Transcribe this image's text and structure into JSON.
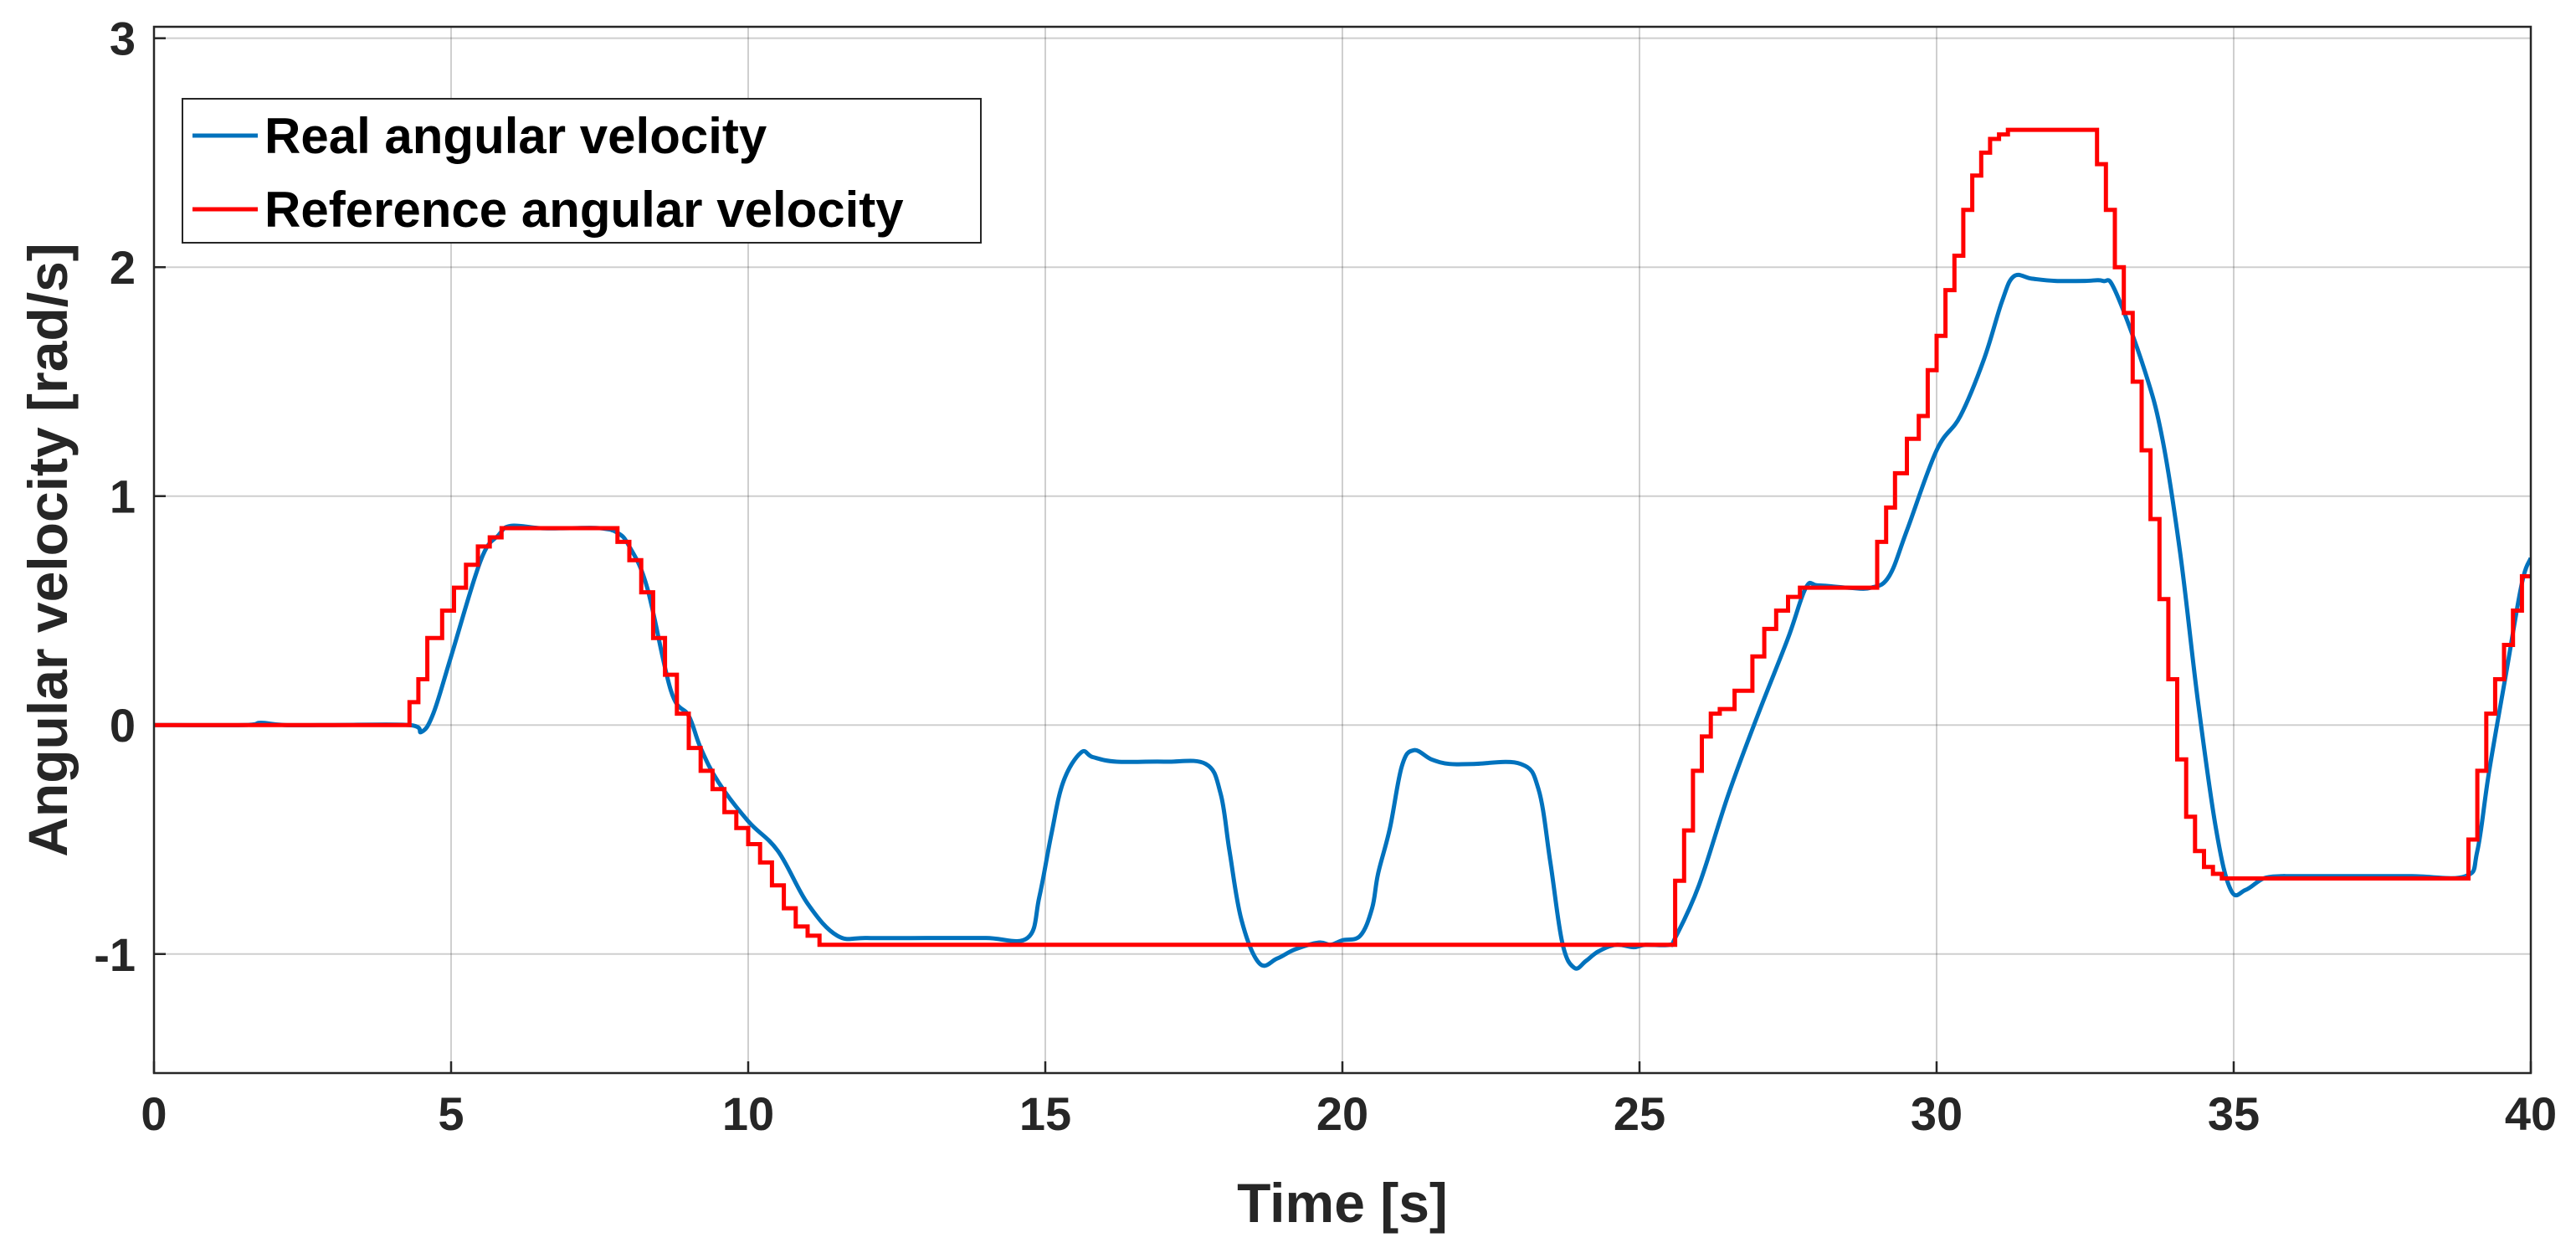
{
  "chart_data": {
    "type": "line",
    "title": "",
    "xlabel": "Time [s]",
    "ylabel": "Angular velocity [rad/s]",
    "xlim": [
      0,
      40
    ],
    "ylim": [
      -1.52,
      3.05
    ],
    "xticks": [
      0,
      5,
      10,
      15,
      20,
      25,
      30,
      35,
      40
    ],
    "yticks": [
      -1,
      0,
      1,
      2,
      3
    ],
    "grid": true,
    "legend_position": "top-left",
    "series": [
      {
        "name": "Real angular velocity",
        "color": "#0072BD",
        "x": [
          0,
          1.5,
          1.8,
          2.2,
          3.0,
          4.3,
          4.5,
          4.7,
          5.0,
          5.5,
          5.8,
          6.0,
          6.5,
          7.0,
          7.5,
          7.8,
          8.0,
          8.3,
          8.7,
          9.0,
          9.2,
          9.5,
          10.0,
          10.5,
          11.0,
          11.5,
          12.0,
          13.0,
          14.0,
          14.7,
          14.9,
          15.1,
          15.3,
          15.6,
          15.8,
          16.2,
          17.0,
          17.7,
          17.95,
          18.1,
          18.3,
          18.6,
          18.9,
          19.2,
          19.6,
          19.8,
          20.0,
          20.3,
          20.5,
          20.6,
          20.8,
          21.0,
          21.2,
          21.5,
          21.8,
          22.2,
          23.0,
          23.3,
          23.5,
          23.7,
          23.9,
          24.1,
          24.3,
          24.6,
          24.9,
          25.1,
          25.5,
          25.6,
          26.0,
          26.5,
          27.0,
          27.5,
          27.8,
          28.0,
          28.5,
          28.9,
          29.2,
          29.5,
          30.0,
          30.4,
          30.8,
          31.1,
          31.3,
          31.6,
          32.0,
          32.5,
          32.8,
          33.0,
          33.5,
          33.8,
          34.1,
          34.4,
          34.7,
          34.95,
          35.2,
          35.5,
          35.8,
          36.0,
          37.0,
          38.0,
          38.9,
          39.1,
          39.3,
          39.6,
          39.85,
          40.0
        ],
        "values": [
          0,
          0,
          0.01,
          0,
          0,
          0,
          -0.03,
          0.05,
          0.3,
          0.72,
          0.83,
          0.87,
          0.86,
          0.86,
          0.86,
          0.84,
          0.78,
          0.6,
          0.15,
          0.04,
          -0.1,
          -0.25,
          -0.42,
          -0.55,
          -0.78,
          -0.92,
          -0.93,
          -0.93,
          -0.93,
          -0.93,
          -0.75,
          -0.48,
          -0.25,
          -0.12,
          -0.14,
          -0.16,
          -0.16,
          -0.17,
          -0.3,
          -0.55,
          -0.85,
          -1.04,
          -1.02,
          -0.98,
          -0.95,
          -0.96,
          -0.94,
          -0.92,
          -0.8,
          -0.65,
          -0.45,
          -0.18,
          -0.11,
          -0.15,
          -0.17,
          -0.17,
          -0.17,
          -0.28,
          -0.6,
          -0.95,
          -1.06,
          -1.03,
          -0.99,
          -0.96,
          -0.97,
          -0.96,
          -0.96,
          -0.93,
          -0.7,
          -0.3,
          0.05,
          0.38,
          0.6,
          0.61,
          0.6,
          0.6,
          0.65,
          0.85,
          1.2,
          1.35,
          1.6,
          1.85,
          1.96,
          1.95,
          1.94,
          1.94,
          1.94,
          1.9,
          1.55,
          1.25,
          0.75,
          0.1,
          -0.45,
          -0.72,
          -0.72,
          -0.67,
          -0.66,
          -0.66,
          -0.66,
          -0.66,
          -0.66,
          -0.55,
          -0.2,
          0.25,
          0.62,
          0.73
        ]
      },
      {
        "name": "Reference angular velocity",
        "color": "#FF0000",
        "steps": {
          "x": [
            0,
            4.3,
            4.45,
            4.6,
            4.85,
            5.05,
            5.25,
            5.45,
            5.65,
            5.85,
            7.8,
            8.0,
            8.2,
            8.4,
            8.6,
            8.8,
            9.0,
            9.2,
            9.4,
            9.6,
            9.8,
            10.0,
            10.2,
            10.4,
            10.6,
            10.8,
            11.0,
            11.2,
            25.6,
            25.75,
            25.9,
            26.05,
            26.2,
            26.35,
            26.6,
            26.9,
            27.1,
            27.3,
            27.5,
            27.7,
            29.0,
            29.15,
            29.3,
            29.5,
            29.7,
            29.85,
            30.0,
            30.15,
            30.3,
            30.45,
            30.6,
            30.75,
            30.9,
            31.05,
            31.2,
            32.7,
            32.85,
            33.0,
            33.15,
            33.3,
            33.45,
            33.6,
            33.75,
            33.9,
            34.05,
            34.2,
            34.35,
            34.5,
            34.65,
            34.8,
            38.95,
            39.1,
            39.25,
            39.4,
            39.55,
            39.7,
            39.85
          ],
          "values": [
            0,
            0.1,
            0.2,
            0.38,
            0.5,
            0.6,
            0.7,
            0.78,
            0.82,
            0.86,
            0.8,
            0.72,
            0.58,
            0.38,
            0.22,
            0.05,
            -0.1,
            -0.2,
            -0.28,
            -0.38,
            -0.45,
            -0.52,
            -0.6,
            -0.7,
            -0.8,
            -0.88,
            -0.92,
            -0.96,
            -0.68,
            -0.46,
            -0.2,
            -0.05,
            0.05,
            0.07,
            0.15,
            0.3,
            0.42,
            0.5,
            0.56,
            0.6,
            0.8,
            0.95,
            1.1,
            1.25,
            1.35,
            1.55,
            1.7,
            1.9,
            2.05,
            2.25,
            2.4,
            2.5,
            2.56,
            2.58,
            2.6,
            2.45,
            2.25,
            2.0,
            1.8,
            1.5,
            1.2,
            0.9,
            0.55,
            0.2,
            -0.15,
            -0.4,
            -0.55,
            -0.62,
            -0.65,
            -0.67,
            -0.5,
            -0.2,
            0.05,
            0.2,
            0.35,
            0.5,
            0.65
          ],
          "x_end": 40
        }
      }
    ]
  }
}
